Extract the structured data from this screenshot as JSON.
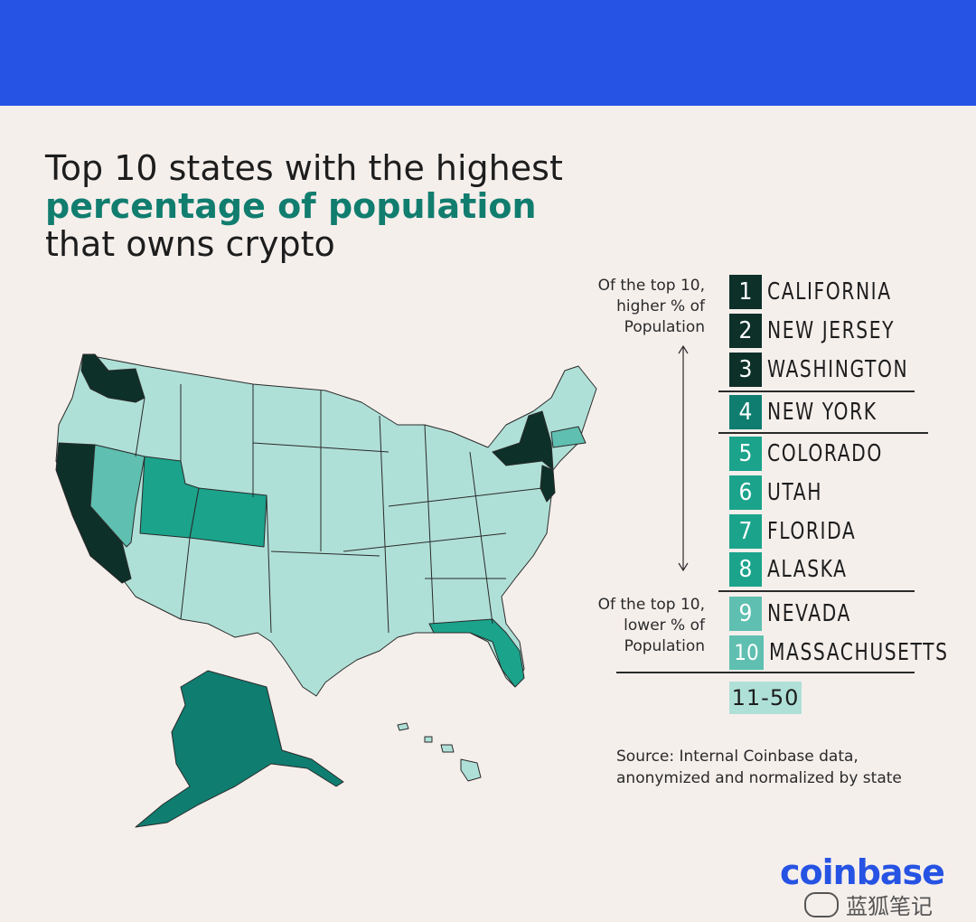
{
  "title": {
    "line1": "Top 10 states with the highest",
    "line2": "percentage of population",
    "line3": "that owns crypto"
  },
  "notes": {
    "higher": [
      "Of the top 10,",
      "higher % of",
      "Population"
    ],
    "lower": [
      "Of the top 10,",
      "lower % of",
      "Population"
    ]
  },
  "legend": [
    {
      "rank": "1",
      "state": "CALIFORNIA",
      "color": "#0d3029"
    },
    {
      "rank": "2",
      "state": "NEW JERSEY",
      "color": "#0d3029"
    },
    {
      "rank": "3",
      "state": "WASHINGTON",
      "color": "#0d3029"
    },
    {
      "rank": "4",
      "state": "NEW YORK",
      "color": "#0f7d70"
    },
    {
      "rank": "5",
      "state": "COLORADO",
      "color": "#1ba38c"
    },
    {
      "rank": "6",
      "state": "UTAH",
      "color": "#1ba38c"
    },
    {
      "rank": "7",
      "state": "FLORIDA",
      "color": "#1ba38c"
    },
    {
      "rank": "8",
      "state": "ALASKA",
      "color": "#1ba38c"
    },
    {
      "rank": "9",
      "state": "NEVADA",
      "color": "#5fbfb0"
    },
    {
      "rank": "10",
      "state": "MASSACHUSETTS",
      "color": "#5fbfb0"
    }
  ],
  "range_label": "11-50",
  "source": [
    "Source: Internal Coinbase data,",
    "anonymized and normalized by state"
  ],
  "logo": "coinbase",
  "watermark": "蓝狐笔记",
  "colors": {
    "top_band": "#2653e3",
    "background": "#f5efec",
    "rest_states": "#afe0d7",
    "tier1": "#0d3029",
    "tier2": "#0f7d70",
    "tier3": "#1ba38c",
    "nevada_ma": "#5fbfb0"
  }
}
